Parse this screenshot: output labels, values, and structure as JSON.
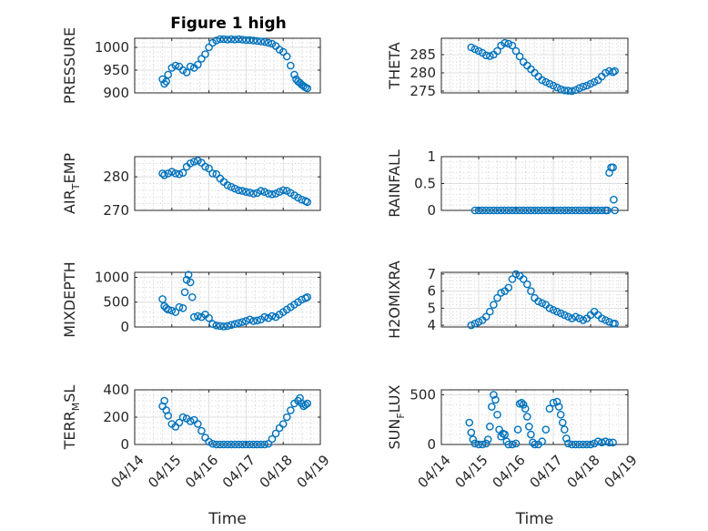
{
  "figure": {
    "title": "Figure 1 high",
    "marker_color": "#0072BD"
  },
  "chart_data": [
    {
      "type": "scatter",
      "ylabel": "PRESSURE",
      "ylim": [
        900,
        1020
      ],
      "yticks": [
        900,
        950,
        1000
      ],
      "ytick_labels": [
        "900",
        "950",
        "1000"
      ],
      "grid": true,
      "xlabel": "",
      "x": [
        14.75,
        14.8,
        14.85,
        14.9,
        15.0,
        15.1,
        15.2,
        15.3,
        15.4,
        15.5,
        15.6,
        15.7,
        15.8,
        15.9,
        16.0,
        16.1,
        16.2,
        16.3,
        16.4,
        16.5,
        16.6,
        16.7,
        16.8,
        16.9,
        17.0,
        17.1,
        17.2,
        17.3,
        17.4,
        17.5,
        17.6,
        17.7,
        17.8,
        17.9,
        18.0,
        18.1,
        18.2,
        18.3,
        18.35,
        18.4,
        18.45,
        18.5,
        18.55,
        18.6,
        18.65
      ],
      "y": [
        930,
        920,
        925,
        940,
        955,
        960,
        958,
        950,
        945,
        958,
        955,
        962,
        975,
        985,
        1000,
        1010,
        1015,
        1018,
        1018,
        1017,
        1018,
        1017,
        1018,
        1017,
        1016,
        1016,
        1015,
        1014,
        1013,
        1012,
        1010,
        1008,
        1003,
        995,
        990,
        980,
        960,
        940,
        930,
        925,
        922,
        918,
        915,
        912,
        910
      ]
    },
    {
      "type": "scatter",
      "ylabel": "THETA",
      "ylim": [
        274.5,
        289.5
      ],
      "yticks": [
        275,
        280,
        285
      ],
      "ytick_labels": [
        "275",
        "280",
        "285"
      ],
      "grid": true,
      "xlabel": "",
      "x": [
        14.8,
        14.9,
        15.0,
        15.1,
        15.2,
        15.3,
        15.4,
        15.5,
        15.6,
        15.7,
        15.8,
        15.9,
        16.0,
        16.1,
        16.2,
        16.3,
        16.4,
        16.5,
        16.6,
        16.7,
        16.8,
        16.9,
        17.0,
        17.1,
        17.2,
        17.3,
        17.4,
        17.5,
        17.6,
        17.7,
        17.8,
        17.9,
        18.0,
        18.1,
        18.2,
        18.3,
        18.4,
        18.5,
        18.6,
        18.65
      ],
      "y": [
        287,
        286.5,
        286,
        285.5,
        284.8,
        284.6,
        285,
        286,
        287.5,
        288.2,
        288,
        287.5,
        286,
        284.5,
        283,
        282,
        281,
        280,
        279,
        278,
        277.5,
        277,
        276.5,
        276,
        275.5,
        275.2,
        275.1,
        275,
        275.3,
        275.8,
        276.2,
        276.5,
        277,
        277.5,
        278,
        279,
        280,
        280.5,
        280.2,
        280.5
      ]
    },
    {
      "type": "scatter",
      "ylabel": "AIR_TEMP",
      "ylim": [
        270,
        286
      ],
      "yticks": [
        270,
        280
      ],
      "ytick_labels": [
        "270",
        "280"
      ],
      "grid": true,
      "xlabel": "",
      "x": [
        14.75,
        14.8,
        14.9,
        15.0,
        15.1,
        15.2,
        15.3,
        15.4,
        15.5,
        15.6,
        15.7,
        15.8,
        15.9,
        16.0,
        16.1,
        16.2,
        16.3,
        16.4,
        16.5,
        16.6,
        16.7,
        16.8,
        16.9,
        17.0,
        17.1,
        17.2,
        17.3,
        17.4,
        17.5,
        17.6,
        17.7,
        17.8,
        17.9,
        18.0,
        18.1,
        18.2,
        18.3,
        18.4,
        18.5,
        18.6,
        18.65
      ],
      "y": [
        281,
        280.5,
        281,
        281.5,
        281,
        280.8,
        281.2,
        283,
        284,
        284.5,
        284.8,
        284.2,
        283,
        282.5,
        281,
        280.8,
        279.5,
        278.5,
        277.5,
        277,
        276.5,
        276,
        275.8,
        275.5,
        275.3,
        275,
        275.2,
        275.8,
        275.5,
        275,
        274.8,
        275,
        275.5,
        276,
        275.8,
        275.2,
        274.5,
        273.8,
        273.2,
        272.8,
        272.5
      ]
    },
    {
      "type": "scatter",
      "ylabel": "RAINFALL",
      "ylim": [
        0,
        1
      ],
      "yticks": [
        0,
        0.5,
        1
      ],
      "ytick_labels": [
        "0",
        "0.5",
        "1"
      ],
      "grid": true,
      "xlabel": "",
      "x": [
        14.9,
        15.0,
        15.1,
        15.2,
        15.3,
        15.4,
        15.5,
        15.6,
        15.7,
        15.8,
        15.9,
        16.0,
        16.1,
        16.2,
        16.3,
        16.4,
        16.5,
        16.6,
        16.7,
        16.8,
        16.9,
        17.0,
        17.1,
        17.2,
        17.3,
        17.4,
        17.5,
        17.6,
        17.7,
        17.8,
        17.9,
        18.0,
        18.1,
        18.2,
        18.3,
        18.4,
        18.45,
        18.5,
        18.55,
        18.6,
        18.62,
        18.65
      ],
      "y": [
        0,
        0,
        0,
        0,
        0,
        0,
        0,
        0,
        0,
        0,
        0,
        0,
        0,
        0,
        0,
        0,
        0,
        0,
        0,
        0,
        0,
        0,
        0,
        0,
        0,
        0,
        0,
        0,
        0,
        0,
        0,
        0,
        0,
        0,
        0,
        0,
        0,
        0.7,
        0.8,
        0.8,
        0.2,
        0
      ]
    },
    {
      "type": "scatter",
      "ylabel": "MIXDEPTH",
      "ylim": [
        0,
        1100
      ],
      "yticks": [
        0,
        500,
        1000
      ],
      "ytick_labels": [
        "0",
        "500",
        "1000"
      ],
      "grid": true,
      "xlabel": "",
      "x": [
        14.75,
        14.8,
        14.85,
        14.9,
        15.0,
        15.1,
        15.2,
        15.3,
        15.35,
        15.4,
        15.45,
        15.5,
        15.55,
        15.6,
        15.7,
        15.8,
        15.9,
        16.0,
        16.1,
        16.2,
        16.3,
        16.4,
        16.5,
        16.6,
        16.7,
        16.8,
        16.9,
        17.0,
        17.1,
        17.2,
        17.3,
        17.4,
        17.5,
        17.6,
        17.7,
        17.8,
        17.9,
        18.0,
        18.1,
        18.2,
        18.3,
        18.4,
        18.5,
        18.6,
        18.65
      ],
      "y": [
        560,
        420,
        380,
        350,
        330,
        300,
        400,
        380,
        700,
        950,
        1050,
        900,
        600,
        200,
        220,
        200,
        250,
        180,
        60,
        30,
        20,
        10,
        20,
        40,
        60,
        80,
        100,
        120,
        150,
        120,
        130,
        150,
        200,
        180,
        220,
        200,
        250,
        300,
        350,
        400,
        450,
        500,
        550,
        580,
        600
      ]
    },
    {
      "type": "scatter",
      "ylabel": "H2OMIXRA",
      "ylim": [
        3.9,
        7.1
      ],
      "yticks": [
        4,
        5,
        6,
        7
      ],
      "ytick_labels": [
        "4",
        "5",
        "6",
        "7"
      ],
      "grid": true,
      "xlabel": "",
      "x": [
        14.8,
        14.9,
        15.0,
        15.1,
        15.2,
        15.3,
        15.4,
        15.5,
        15.6,
        15.7,
        15.8,
        15.9,
        16.0,
        16.1,
        16.2,
        16.3,
        16.4,
        16.5,
        16.6,
        16.7,
        16.8,
        16.9,
        17.0,
        17.1,
        17.2,
        17.3,
        17.4,
        17.5,
        17.6,
        17.7,
        17.8,
        17.9,
        18.0,
        18.1,
        18.2,
        18.3,
        18.4,
        18.5,
        18.6,
        18.65
      ],
      "y": [
        4.0,
        4.1,
        4.2,
        4.3,
        4.5,
        4.8,
        5.2,
        5.6,
        5.9,
        6.0,
        6.2,
        6.7,
        7.0,
        6.9,
        6.7,
        6.4,
        6.0,
        5.6,
        5.4,
        5.3,
        5.2,
        5.0,
        4.9,
        4.8,
        4.7,
        4.6,
        4.5,
        4.4,
        4.5,
        4.4,
        4.3,
        4.4,
        4.6,
        4.8,
        4.6,
        4.4,
        4.3,
        4.2,
        4.1,
        4.1
      ]
    },
    {
      "type": "scatter",
      "ylabel": "TERR_MSL",
      "ylim": [
        0,
        400
      ],
      "yticks": [
        0,
        200,
        400
      ],
      "ytick_labels": [
        "0",
        "200",
        "400"
      ],
      "grid": true,
      "xlabel": "Time",
      "xticks": [
        14,
        15,
        16,
        17,
        18,
        19
      ],
      "xtick_labels": [
        "04/14",
        "04/15",
        "04/16",
        "04/17",
        "04/18",
        "04/19"
      ],
      "x": [
        14.75,
        14.8,
        14.85,
        14.9,
        15.0,
        15.1,
        15.2,
        15.3,
        15.4,
        15.5,
        15.6,
        15.7,
        15.8,
        15.9,
        16.0,
        16.1,
        16.2,
        16.3,
        16.4,
        16.5,
        16.6,
        16.7,
        16.8,
        16.9,
        17.0,
        17.1,
        17.2,
        17.3,
        17.4,
        17.5,
        17.6,
        17.7,
        17.8,
        17.9,
        18.0,
        18.1,
        18.2,
        18.3,
        18.4,
        18.45,
        18.5,
        18.55,
        18.6,
        18.65
      ],
      "y": [
        280,
        320,
        250,
        210,
        150,
        130,
        160,
        200,
        190,
        170,
        180,
        150,
        100,
        50,
        20,
        5,
        0,
        0,
        0,
        0,
        0,
        0,
        0,
        0,
        0,
        0,
        0,
        0,
        0,
        0,
        5,
        40,
        80,
        120,
        150,
        200,
        250,
        300,
        320,
        340,
        300,
        280,
        290,
        300
      ]
    },
    {
      "type": "scatter",
      "ylabel": "SUN_FLUX",
      "ylim": [
        0,
        550
      ],
      "yticks": [
        0,
        500
      ],
      "ytick_labels": [
        "0",
        "500"
      ],
      "grid": true,
      "xlabel": "Time",
      "xticks": [
        14,
        15,
        16,
        17,
        18,
        19
      ],
      "xtick_labels": [
        "04/14",
        "04/15",
        "04/16",
        "04/17",
        "04/18",
        "04/19"
      ],
      "x": [
        14.75,
        14.8,
        14.85,
        14.9,
        15.0,
        15.1,
        15.2,
        15.25,
        15.3,
        15.35,
        15.4,
        15.45,
        15.5,
        15.55,
        15.6,
        15.65,
        15.7,
        15.75,
        15.8,
        15.9,
        16.0,
        16.05,
        16.1,
        16.15,
        16.2,
        16.25,
        16.3,
        16.35,
        16.4,
        16.45,
        16.5,
        16.6,
        16.7,
        16.8,
        16.9,
        17.0,
        17.1,
        17.15,
        17.2,
        17.25,
        17.3,
        17.35,
        17.4,
        17.5,
        17.6,
        17.7,
        17.8,
        17.9,
        18.0,
        18.1,
        18.2,
        18.3,
        18.4,
        18.5,
        18.6
      ],
      "y": [
        220,
        120,
        50,
        10,
        0,
        0,
        10,
        50,
        180,
        380,
        500,
        450,
        300,
        150,
        80,
        110,
        100,
        30,
        0,
        0,
        10,
        150,
        410,
        420,
        400,
        360,
        280,
        180,
        100,
        20,
        0,
        0,
        30,
        150,
        360,
        420,
        430,
        380,
        300,
        220,
        150,
        60,
        10,
        0,
        0,
        0,
        0,
        0,
        0,
        10,
        30,
        20,
        30,
        20,
        20
      ]
    }
  ]
}
